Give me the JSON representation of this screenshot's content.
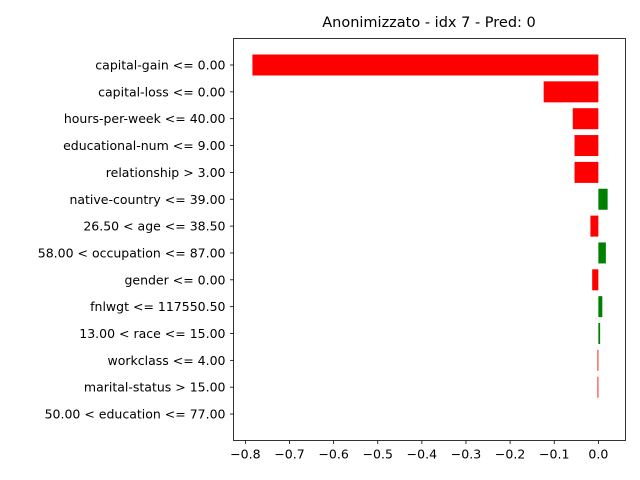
{
  "chart_data": {
    "type": "bar",
    "orientation": "horizontal",
    "title": "Anonimizzato - idx 7 - Pred: 0",
    "xlabel": "",
    "ylabel": "",
    "xlim": [
      -0.8269,
      0.0615
    ],
    "xticks": [
      -0.8,
      -0.7,
      -0.6,
      -0.5,
      -0.4,
      -0.3,
      -0.2,
      -0.1,
      0.0
    ],
    "xtick_labels": [
      "−0.8",
      "−0.7",
      "−0.6",
      "−0.5",
      "−0.4",
      "−0.3",
      "−0.2",
      "−0.1",
      "0.0"
    ],
    "grid": false,
    "positive_color": "#008000",
    "negative_color": "#ff0000",
    "categories": [
      "capital-gain <= 0.00",
      "capital-loss <= 0.00",
      "hours-per-week <= 40.00",
      "educational-num <= 9.00",
      "relationship > 3.00",
      "native-country <= 39.00",
      "26.50 < age <= 38.50",
      "58.00 < occupation <= 87.00",
      "gender <= 0.00",
      "fnlwgt <= 117550.50",
      "13.00 < race <= 15.00",
      "workclass <= 4.00",
      "marital-status > 15.00",
      "50.00 < education <= 77.00"
    ],
    "values": [
      -0.784,
      -0.124,
      -0.058,
      -0.054,
      -0.054,
      0.021,
      -0.018,
      0.017,
      -0.014,
      0.009,
      0.004,
      -0.002,
      -0.002,
      0.0
    ]
  }
}
